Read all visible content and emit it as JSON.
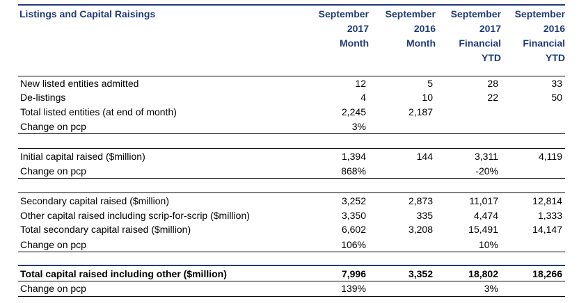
{
  "title": "Listings and Capital Raisings",
  "columns": [
    "September\n2017\nMonth",
    "September\n2016\nMonth",
    "September\n2017\nFinancial\nYTD",
    "September\n2016\nFinancial\nYTD"
  ],
  "column_lines": [
    [
      "September",
      "2017",
      "Month"
    ],
    [
      "September",
      "2016",
      "Month"
    ],
    [
      "September",
      "2017",
      "Financial",
      "YTD"
    ],
    [
      "September",
      "2016",
      "Financial",
      "YTD"
    ]
  ],
  "rows": [
    {
      "label": "New listed entities admitted",
      "values": [
        "12",
        "5",
        "28",
        "33"
      ],
      "bold": false
    },
    {
      "label": "De-listings",
      "values": [
        "4",
        "10",
        "22",
        "50"
      ],
      "bold": false
    },
    {
      "label": "Total listed entities (at end of month)",
      "values": [
        "2,245",
        "2,187",
        "",
        ""
      ],
      "bold": false
    },
    {
      "label": "Change on pcp",
      "values": [
        "3%",
        "",
        "",
        ""
      ],
      "bold": false
    },
    {
      "label": "Initial capital raised ($million)",
      "values": [
        "1,394",
        "144",
        "3,311",
        "4,119"
      ],
      "bold": false
    },
    {
      "label": "Change on pcp",
      "values": [
        "868%",
        "",
        "-20%",
        ""
      ],
      "bold": false
    },
    {
      "label": "Secondary capital raised ($million)",
      "values": [
        "3,252",
        "2,873",
        "11,017",
        "12,814"
      ],
      "bold": false
    },
    {
      "label": "Other capital raised including scrip-for-scrip ($million)",
      "values": [
        "3,350",
        "335",
        "4,474",
        "1,333"
      ],
      "bold": false
    },
    {
      "label": "Total secondary capital raised ($million)",
      "values": [
        "6,602",
        "3,208",
        "15,491",
        "14,147"
      ],
      "bold": false
    },
    {
      "label": "Change on pcp",
      "values": [
        "106%",
        "",
        "10%",
        ""
      ],
      "bold": false
    },
    {
      "label": "Total capital raised including other ($million)",
      "values": [
        "7,996",
        "3,352",
        "18,802",
        "18,266"
      ],
      "bold": true
    },
    {
      "label": "Change on pcp",
      "values": [
        "139%",
        "",
        "3%",
        ""
      ],
      "bold": false
    }
  ]
}
